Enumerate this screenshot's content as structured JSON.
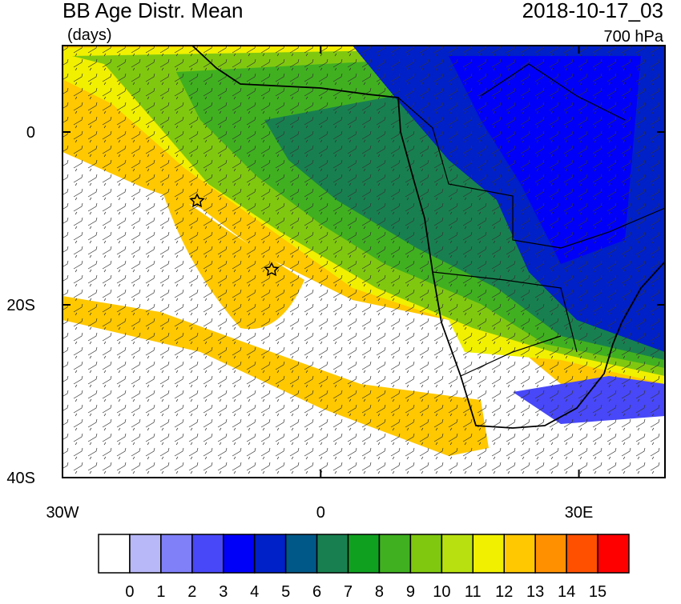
{
  "header": {
    "title": "BB Age Distr. Mean",
    "units": "(days)",
    "time": "2018-10-17_03",
    "level": "700 hPa"
  },
  "map": {
    "lon_range": [
      -30,
      40
    ],
    "lat_range": [
      -40,
      10
    ],
    "lat_ticks": [
      {
        "value": 0,
        "label": "0"
      },
      {
        "value": -20,
        "label": "20S"
      },
      {
        "value": -40,
        "label": "40S"
      }
    ],
    "lon_ticks": [
      {
        "value": -30,
        "label": "30W"
      },
      {
        "value": 0,
        "label": "0"
      },
      {
        "value": 30,
        "label": "30E"
      }
    ]
  },
  "colorbar": {
    "levels": [
      0,
      1,
      2,
      3,
      4,
      5,
      6,
      7,
      8,
      9,
      10,
      11,
      12,
      13,
      14,
      15
    ],
    "colors": [
      "#ffffff",
      "#b8b8f8",
      "#8080f8",
      "#4848f8",
      "#0000f8",
      "#0020c8",
      "#005888",
      "#188050",
      "#10a020",
      "#40b020",
      "#80c810",
      "#b8e010",
      "#f0f000",
      "#ffc800",
      "#ff9000",
      "#ff5000",
      "#ff0000"
    ]
  }
}
